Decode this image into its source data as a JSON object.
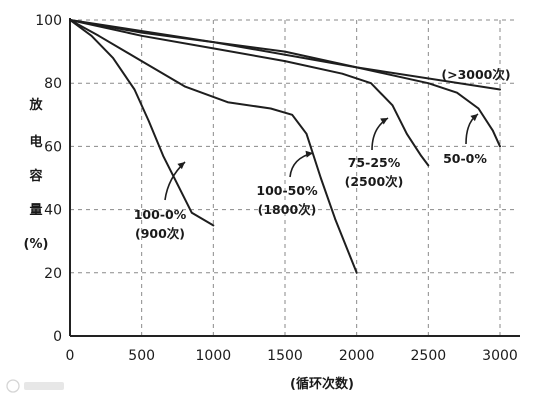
{
  "chart_data": {
    "type": "line",
    "title": "",
    "xlabel": "(循环次数)",
    "ylabel": "放电容量(%)",
    "ylabel_lines": [
      "放",
      "电",
      "容",
      "量",
      "(%)"
    ],
    "xlim": [
      0,
      3000
    ],
    "ylim": [
      0,
      100
    ],
    "x_ticks": [
      0,
      500,
      1000,
      1500,
      2000,
      2500,
      3000
    ],
    "y_ticks": [
      0,
      20,
      40,
      60,
      80,
      100
    ],
    "grid": true,
    "legend": "none",
    "series": [
      {
        "label_lines": [
          "100-0%",
          "(900次)"
        ],
        "points": [
          [
            0,
            100
          ],
          [
            150,
            95
          ],
          [
            300,
            88
          ],
          [
            450,
            78
          ],
          [
            550,
            68
          ],
          [
            650,
            57
          ],
          [
            750,
            48
          ],
          [
            850,
            39
          ],
          [
            1000,
            35
          ]
        ]
      },
      {
        "label_lines": [
          "100-50%",
          "(1800次)"
        ],
        "points": [
          [
            0,
            100
          ],
          [
            200,
            95
          ],
          [
            500,
            87
          ],
          [
            800,
            79
          ],
          [
            1100,
            74
          ],
          [
            1400,
            72
          ],
          [
            1550,
            70
          ],
          [
            1650,
            64
          ],
          [
            1750,
            50
          ],
          [
            1850,
            37
          ],
          [
            2000,
            20
          ]
        ]
      },
      {
        "label_lines": [
          "75-25%",
          "(2500次)"
        ],
        "points": [
          [
            0,
            100
          ],
          [
            500,
            95
          ],
          [
            1000,
            91
          ],
          [
            1500,
            87
          ],
          [
            1900,
            83
          ],
          [
            2100,
            80
          ],
          [
            2250,
            73
          ],
          [
            2350,
            64
          ],
          [
            2450,
            57
          ],
          [
            2500,
            54
          ]
        ]
      },
      {
        "label_lines": [
          "50-0%"
        ],
        "points": [
          [
            0,
            100
          ],
          [
            500,
            96
          ],
          [
            1000,
            93
          ],
          [
            1500,
            90
          ],
          [
            2000,
            85
          ],
          [
            2500,
            80
          ],
          [
            2700,
            77
          ],
          [
            2850,
            72
          ],
          [
            2950,
            65
          ],
          [
            3000,
            60
          ]
        ]
      },
      {
        "label_lines": [
          "(>3000次)"
        ],
        "points": [
          [
            0,
            100
          ],
          [
            1000,
            93
          ],
          [
            2000,
            85
          ],
          [
            3000,
            78
          ]
        ]
      }
    ]
  }
}
